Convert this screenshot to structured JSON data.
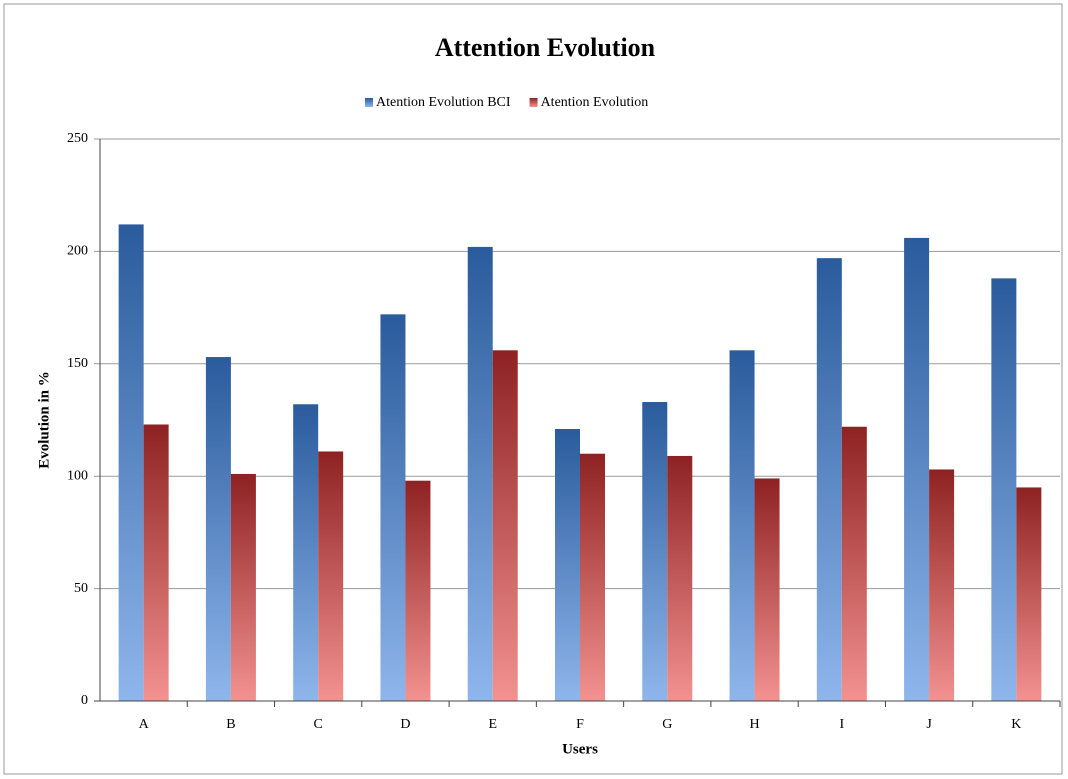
{
  "chart_data": {
    "type": "bar",
    "title": "Attention Evolution",
    "x_label": "Users",
    "y_label": "Evolution in %",
    "categories": [
      "A",
      "B",
      "C",
      "D",
      "E",
      "F",
      "G",
      "H",
      "I",
      "J",
      "K"
    ],
    "series": [
      {
        "name": "Atention Evolution BCI",
        "color": "#2a5b9c",
        "values": [
          212,
          153,
          132,
          172,
          202,
          121,
          133,
          156,
          197,
          206,
          188
        ]
      },
      {
        "name": "Atention Evolution",
        "color": "#8e2222",
        "values": [
          123,
          101,
          111,
          98,
          156,
          110,
          109,
          99,
          122,
          103,
          95
        ]
      }
    ],
    "ylim": [
      0,
      250
    ],
    "yticks": [
      0,
      50,
      100,
      150,
      200,
      250
    ],
    "grid": true
  }
}
